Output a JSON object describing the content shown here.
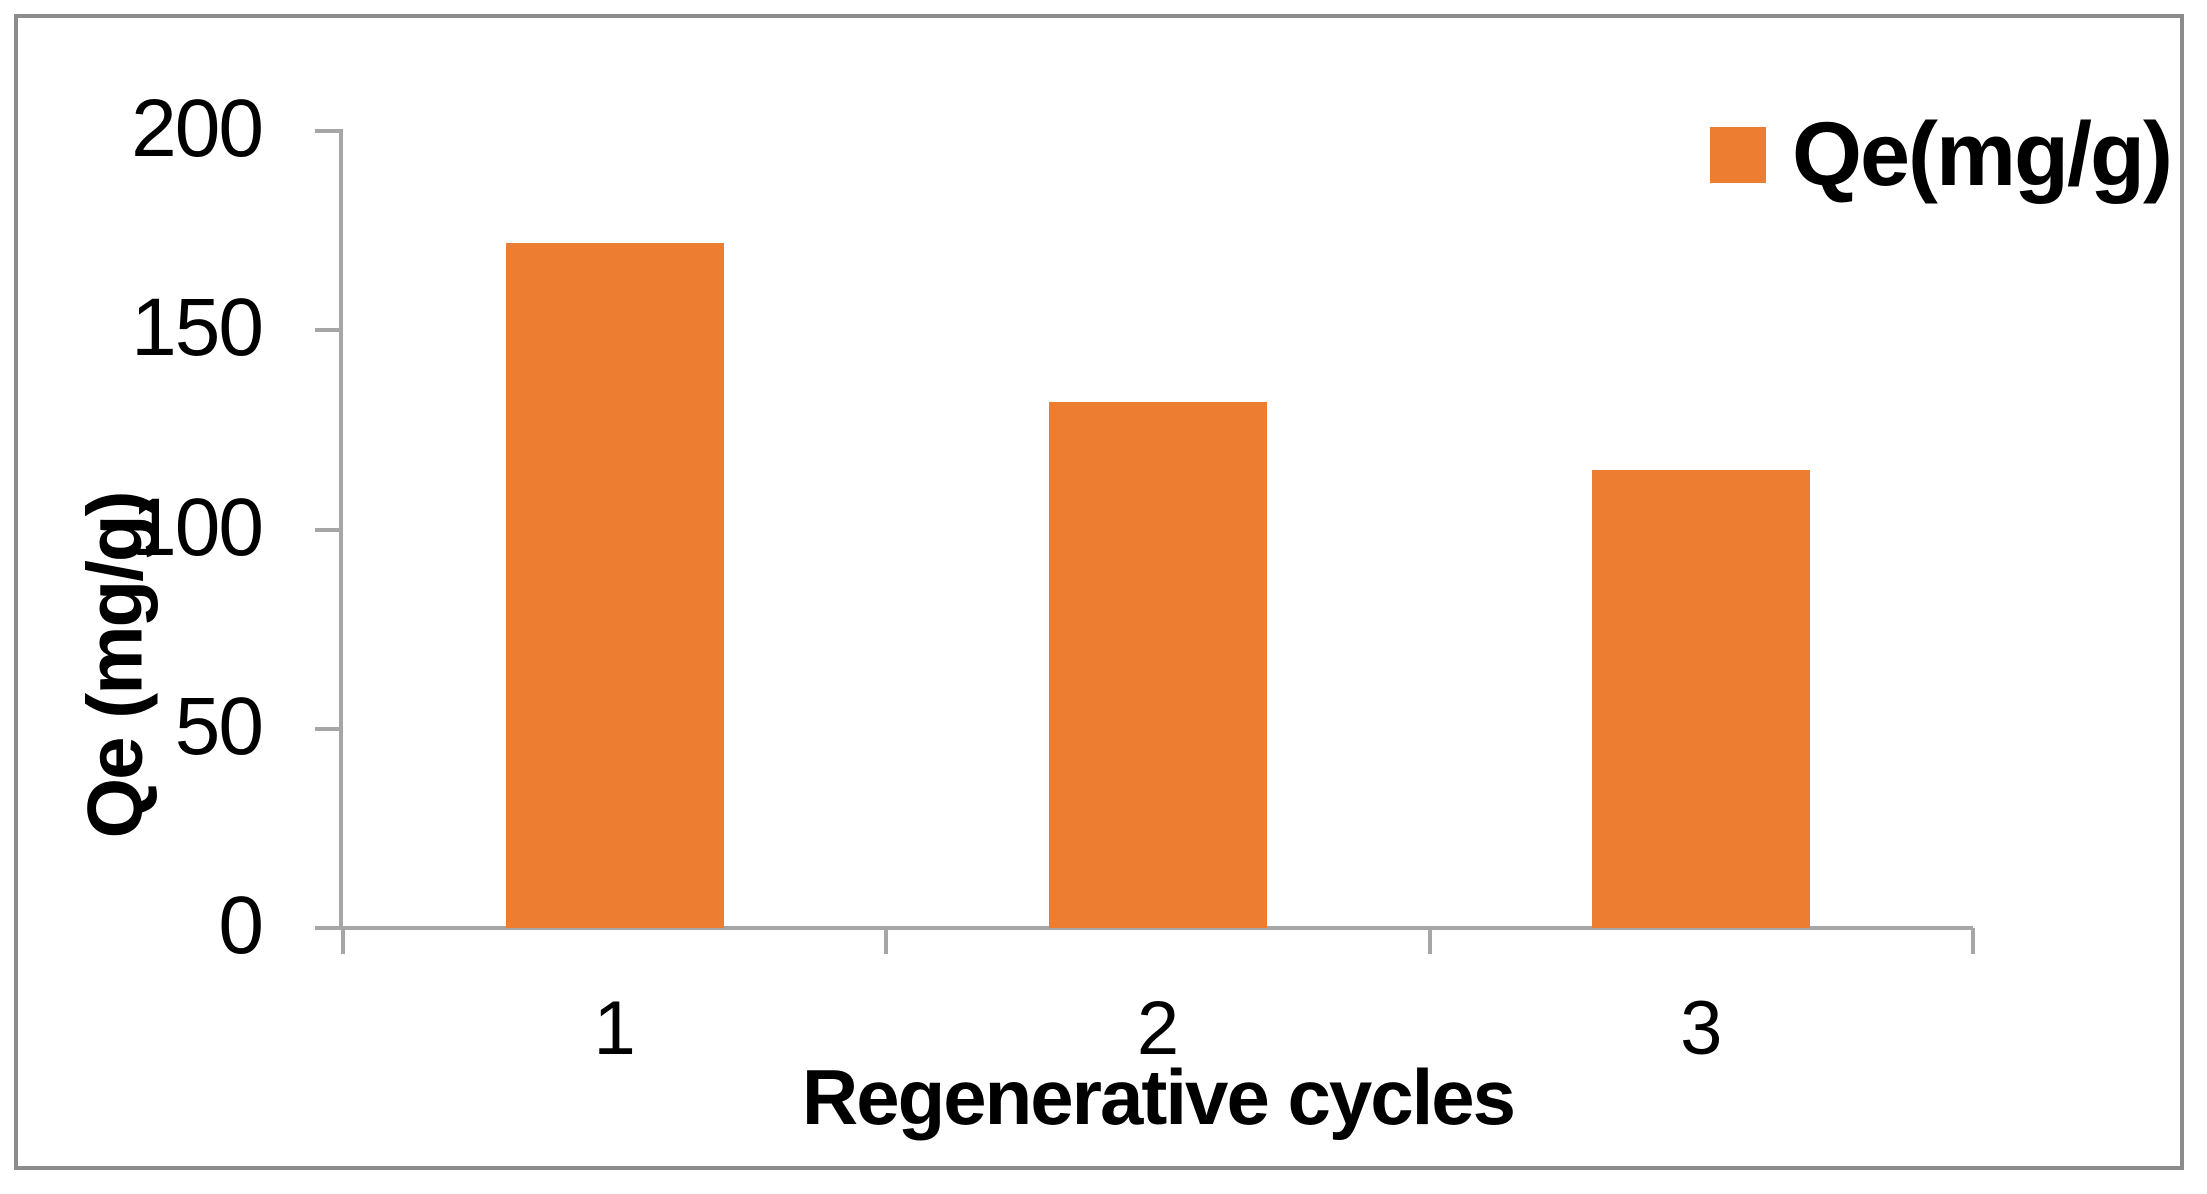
{
  "chart_data": {
    "type": "bar",
    "title": "",
    "categories": [
      "1",
      "2",
      "3"
    ],
    "series": [
      {
        "name": "Qe(mg/g)",
        "values": [
          172,
          132,
          115
        ]
      }
    ],
    "xlabel": "Regenerative cycles",
    "ylabel": "Qe (mg/g)",
    "yticks": [
      200,
      150,
      100,
      50,
      0
    ],
    "ylim": [
      0,
      200
    ],
    "grid": false,
    "legend_position": "top-right",
    "colors": {
      "bar": "#ed7d31",
      "axis": "#a6a6a6",
      "frame": "#8c8c8c",
      "text": "#000000",
      "background": "#ffffff"
    }
  }
}
